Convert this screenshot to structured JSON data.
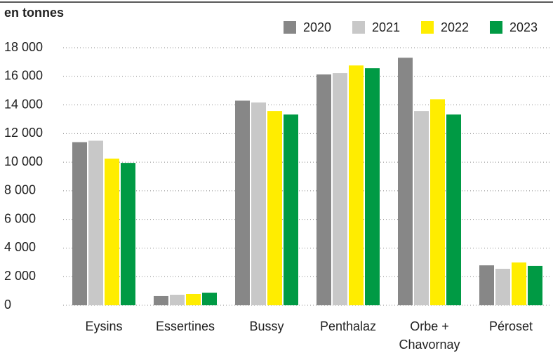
{
  "chart_data": {
    "type": "bar",
    "title": "en tonnes",
    "categories": [
      "Eysins",
      "Essertines",
      "Bussy",
      "Penthalaz",
      "Orbe + Chavornay",
      "Péroset"
    ],
    "series": [
      {
        "name": "2020",
        "color": "#878787",
        "values": [
          11400,
          640,
          14300,
          16130,
          17300,
          2790
        ]
      },
      {
        "name": "2021",
        "color": "#c8c8c8",
        "values": [
          11500,
          735,
          14170,
          16230,
          13580,
          2550
        ]
      },
      {
        "name": "2022",
        "color": "#ffed00",
        "values": [
          10250,
          785,
          13580,
          16760,
          14400,
          2990
        ]
      },
      {
        "name": "2023",
        "color": "#009a44",
        "values": [
          9950,
          880,
          13330,
          16570,
          13330,
          2750
        ]
      }
    ],
    "ylim": [
      0,
      18000
    ],
    "yticks": [
      0,
      {
        "value": 2000,
        "label": "2 000"
      },
      {
        "value": 4000,
        "label": "4 000"
      },
      {
        "value": 6000,
        "label": "6 000"
      },
      {
        "value": 8000,
        "label": "8 000"
      },
      {
        "value": 10000,
        "label": "10 000"
      },
      {
        "value": 12000,
        "label": "12 000"
      },
      {
        "value": 14000,
        "label": "14 000"
      },
      {
        "value": 16000,
        "label": "16 000"
      },
      {
        "value": 18000,
        "label": "18 000"
      }
    ],
    "grid": true,
    "legend": "top-right"
  }
}
